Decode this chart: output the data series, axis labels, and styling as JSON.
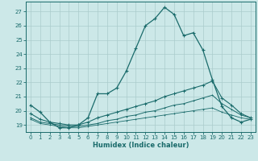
{
  "xlabel": "Humidex (Indice chaleur)",
  "bg_color": "#cce8e8",
  "grid_color": "#aacccc",
  "line_color": "#1a6b6b",
  "xlim": [
    -0.5,
    23.5
  ],
  "ylim": [
    18.5,
    27.7
  ],
  "yticks": [
    19,
    20,
    21,
    22,
    23,
    24,
    25,
    26,
    27
  ],
  "xticks": [
    0,
    1,
    2,
    3,
    4,
    5,
    6,
    7,
    8,
    9,
    10,
    11,
    12,
    13,
    14,
    15,
    16,
    17,
    18,
    19,
    20,
    21,
    22,
    23
  ],
  "line1_x": [
    0,
    1,
    2,
    3,
    4,
    5,
    6,
    7,
    8,
    9,
    10,
    11,
    12,
    13,
    14,
    15,
    16,
    17,
    18,
    19,
    20,
    21,
    22,
    23
  ],
  "line1_y": [
    20.4,
    19.9,
    19.2,
    18.8,
    18.8,
    19.0,
    19.5,
    21.2,
    21.2,
    21.6,
    22.8,
    24.4,
    26.0,
    26.5,
    27.3,
    26.8,
    25.3,
    25.5,
    24.3,
    22.2,
    20.3,
    19.5,
    19.2,
    19.4
  ],
  "line2_x": [
    0,
    1,
    2,
    3,
    4,
    5,
    6,
    7,
    8,
    9,
    10,
    11,
    12,
    13,
    14,
    15,
    16,
    17,
    18,
    19,
    20,
    21,
    22,
    23
  ],
  "line2_y": [
    19.8,
    19.4,
    19.2,
    19.1,
    19.0,
    19.0,
    19.2,
    19.5,
    19.7,
    19.9,
    20.1,
    20.3,
    20.5,
    20.7,
    21.0,
    21.2,
    21.4,
    21.6,
    21.8,
    22.1,
    20.9,
    20.4,
    19.8,
    19.5
  ],
  "line3_x": [
    0,
    1,
    2,
    3,
    4,
    5,
    6,
    7,
    8,
    9,
    10,
    11,
    12,
    13,
    14,
    15,
    16,
    17,
    18,
    19,
    20,
    21,
    22,
    23
  ],
  "line3_y": [
    19.5,
    19.2,
    19.1,
    19.0,
    18.9,
    18.9,
    19.0,
    19.1,
    19.3,
    19.4,
    19.6,
    19.7,
    19.9,
    20.0,
    20.2,
    20.4,
    20.5,
    20.7,
    20.9,
    21.1,
    20.5,
    20.1,
    19.7,
    19.5
  ],
  "line4_x": [
    0,
    1,
    2,
    3,
    4,
    5,
    6,
    7,
    8,
    9,
    10,
    11,
    12,
    13,
    14,
    15,
    16,
    17,
    18,
    19,
    20,
    21,
    22,
    23
  ],
  "line4_y": [
    19.4,
    19.1,
    19.0,
    18.9,
    18.8,
    18.8,
    18.9,
    19.0,
    19.1,
    19.2,
    19.3,
    19.4,
    19.5,
    19.6,
    19.7,
    19.8,
    19.9,
    20.0,
    20.1,
    20.2,
    19.9,
    19.7,
    19.5,
    19.4
  ]
}
